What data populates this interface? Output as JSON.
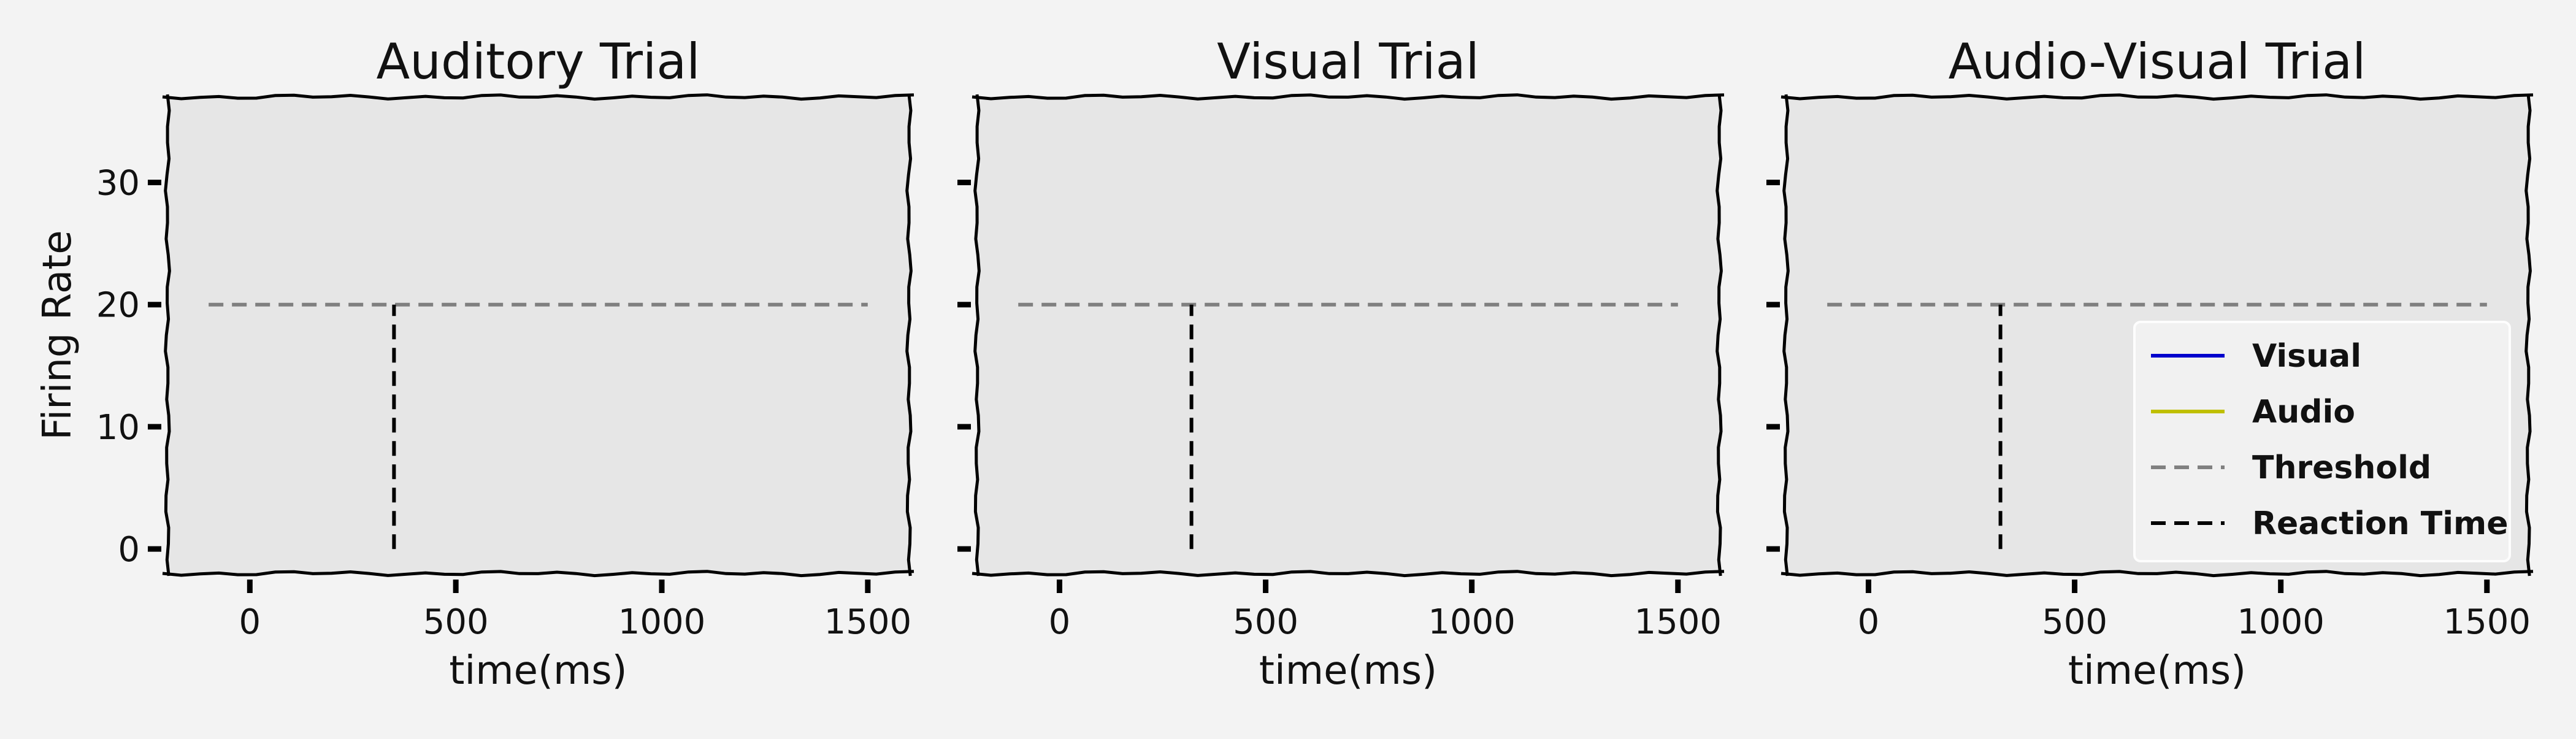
{
  "figure": {
    "background": "#f3f3f3",
    "panel_background": "#e6e6e6"
  },
  "chart_data": [
    {
      "type": "line",
      "title": "Auditory Trial",
      "xlabel": "time(ms)",
      "ylabel": "Firing Rate",
      "xlim": [
        -200,
        1600
      ],
      "ylim": [
        -2,
        37
      ],
      "xticks": [
        0,
        500,
        1000,
        1500
      ],
      "yticks": [
        0,
        10,
        20,
        30
      ],
      "show_ytick_labels": true,
      "grid": false,
      "series": [
        {
          "name": "Threshold",
          "style": "dashed",
          "color": "#808080",
          "x": [
            -100,
            1500
          ],
          "y": [
            20,
            20
          ]
        },
        {
          "name": "Reaction Time",
          "style": "dashed",
          "color": "#000000",
          "x": [
            350,
            350
          ],
          "y": [
            0,
            20
          ]
        }
      ]
    },
    {
      "type": "line",
      "title": "Visual Trial",
      "xlabel": "time(ms)",
      "ylabel": "",
      "xlim": [
        -200,
        1600
      ],
      "ylim": [
        -2,
        37
      ],
      "xticks": [
        0,
        500,
        1000,
        1500
      ],
      "yticks": [
        0,
        10,
        20,
        30
      ],
      "show_ytick_labels": false,
      "grid": false,
      "series": [
        {
          "name": "Threshold",
          "style": "dashed",
          "color": "#808080",
          "x": [
            -100,
            1500
          ],
          "y": [
            20,
            20
          ]
        },
        {
          "name": "Reaction Time",
          "style": "dashed",
          "color": "#000000",
          "x": [
            320,
            320
          ],
          "y": [
            0,
            20
          ]
        }
      ]
    },
    {
      "type": "line",
      "title": "Audio-Visual Trial",
      "xlabel": "time(ms)",
      "ylabel": "",
      "xlim": [
        -200,
        1600
      ],
      "ylim": [
        -2,
        37
      ],
      "xticks": [
        0,
        500,
        1000,
        1500
      ],
      "yticks": [
        0,
        10,
        20,
        30
      ],
      "show_ytick_labels": false,
      "grid": false,
      "series": [
        {
          "name": "Threshold",
          "style": "dashed",
          "color": "#808080",
          "x": [
            -100,
            1500
          ],
          "y": [
            20,
            20
          ]
        },
        {
          "name": "Reaction Time",
          "style": "dashed",
          "color": "#000000",
          "x": [
            320,
            320
          ],
          "y": [
            0,
            20
          ]
        }
      ],
      "legend": {
        "placement": "lower-right",
        "entries": [
          {
            "label": "Visual",
            "color": "#0000cc",
            "style": "solid"
          },
          {
            "label": "Audio",
            "color": "#bfbf00",
            "style": "solid"
          },
          {
            "label": "Threshold",
            "color": "#808080",
            "style": "dashed"
          },
          {
            "label": "Reaction Time",
            "color": "#000000",
            "style": "dashed"
          }
        ]
      }
    }
  ]
}
